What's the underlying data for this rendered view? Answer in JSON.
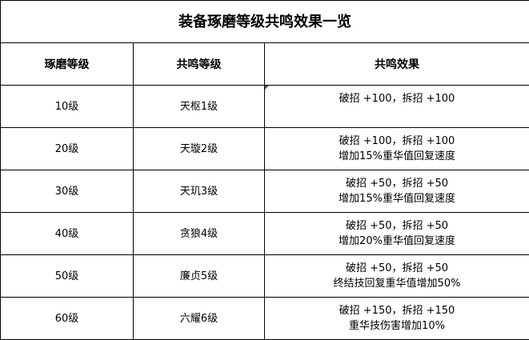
{
  "title": "装备琢磨等级共鸣效果一览",
  "headers": [
    "琢磨等级",
    "共鸣等级",
    "共鸣效果"
  ],
  "rows": [
    {
      "level": "10级",
      "resonance": "天枢1级",
      "effect": [
        "破招 +100，拆招 +100",
        ""
      ]
    },
    {
      "level": "20级",
      "resonance": "天璇2级",
      "effect": [
        "破招 +100，拆招 +100",
        "增加15%重华值回复速度"
      ]
    },
    {
      "level": "30级",
      "resonance": "天玑3级",
      "effect": [
        "破招 +50，拆招 +50",
        "增加15%重华值回复速度"
      ]
    },
    {
      "level": "40级",
      "resonance": "贪狼4级",
      "effect": [
        "破招 +50，拆招 +50",
        "增加20%重华值回复速度"
      ]
    },
    {
      "level": "50级",
      "resonance": "廉贞5级",
      "effect": [
        "破招 +50，拆招 +50",
        "终结技回复重华值增加50%"
      ]
    },
    {
      "level": "60级",
      "resonance": "六耀6级",
      "effect": [
        "破招 +150，拆招 +150",
        "重华技伤害增加10%"
      ]
    }
  ]
}
